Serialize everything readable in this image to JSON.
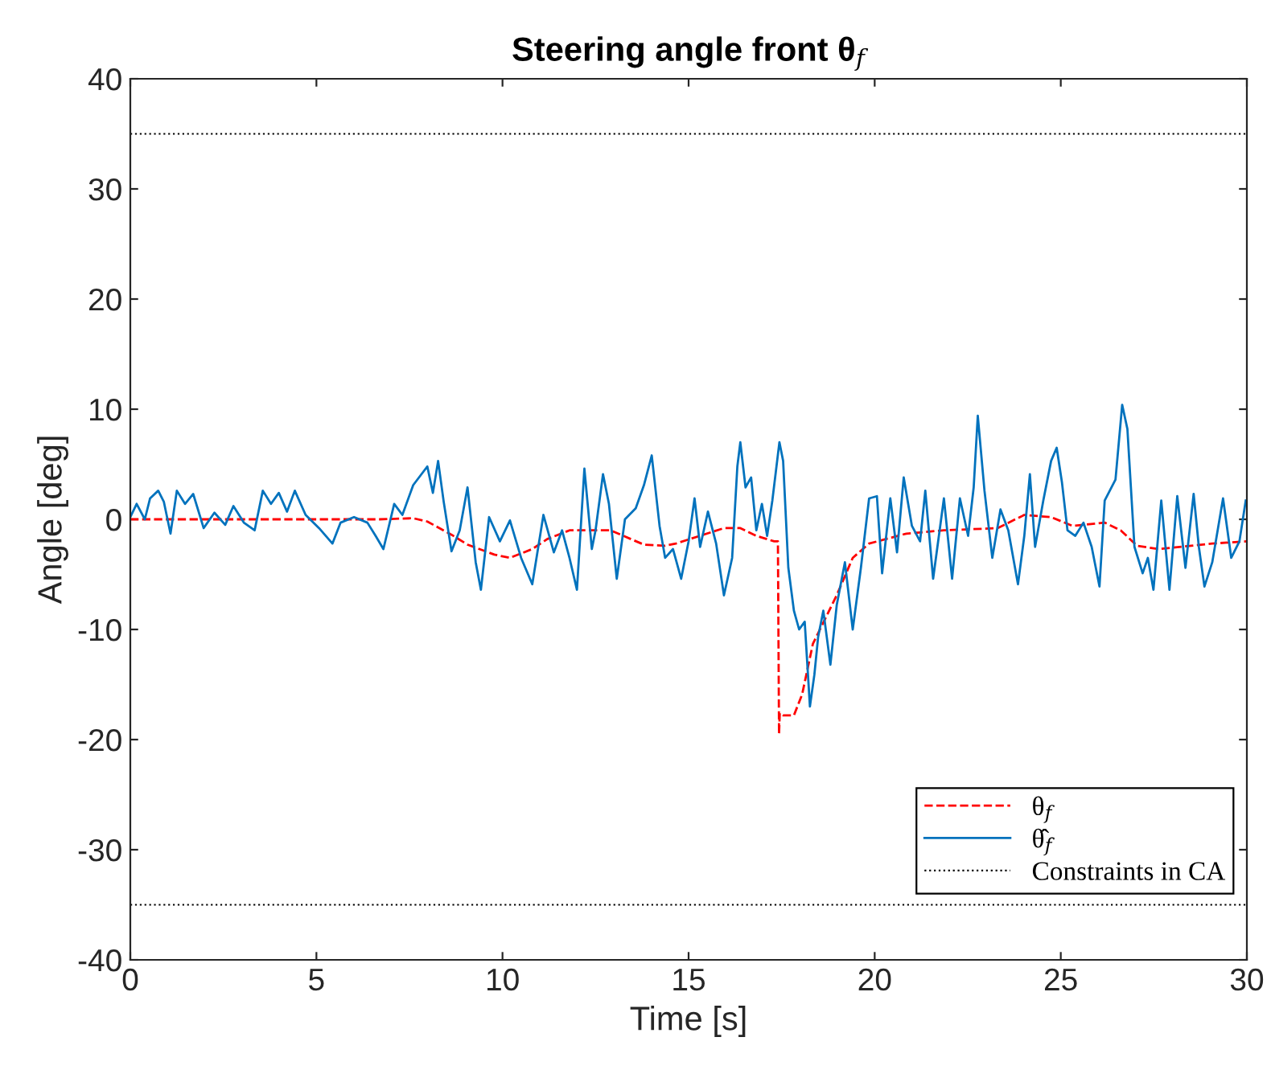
{
  "chart_data": {
    "type": "line",
    "title": "Steering angle front θ$_{f}$",
    "xlabel": "Time [s]",
    "ylabel": "Angle [deg]",
    "xlim": [
      0,
      30
    ],
    "ylim": [
      -40,
      40
    ],
    "xticks": [
      0,
      5,
      10,
      15,
      20,
      25,
      30
    ],
    "yticks": [
      -40,
      -30,
      -20,
      -10,
      0,
      10,
      20,
      30,
      40
    ],
    "grid": false,
    "legend": "bottom right",
    "series": [
      {
        "name": "θ$_{f}$",
        "color": "#ff0000",
        "line_style": "dashed",
        "x": [
          0,
          6.7,
          7.6,
          7.98,
          8.63,
          9.06,
          9.78,
          10.2,
          10.8,
          11.2,
          11.8,
          12.4,
          12.9,
          13.8,
          14.37,
          14.66,
          15.95,
          16.39,
          16.82,
          17.3,
          17.4,
          17.43,
          17.45,
          17.54,
          17.83,
          18.05,
          18.34,
          18.98,
          19.41,
          19.85,
          20.85,
          21.86,
          23.3,
          24.02,
          24.74,
          25.32,
          26.18,
          26.61,
          27.05,
          27.63,
          29.07,
          30
        ],
        "values": [
          0,
          0,
          0.1,
          -0.2,
          -1.4,
          -2.3,
          -3.2,
          -3.5,
          -2.7,
          -1.8,
          -1.0,
          -1.0,
          -1.0,
          -2.3,
          -2.4,
          -2.2,
          -0.8,
          -0.8,
          -1.5,
          -2.0,
          -2.0,
          -19.5,
          -17.6,
          -17.8,
          -17.8,
          -15.9,
          -11.3,
          -6.9,
          -3.5,
          -2.2,
          -1.3,
          -1.0,
          -0.8,
          0.4,
          0.2,
          -0.6,
          -0.3,
          -1.0,
          -2.4,
          -2.7,
          -2.2,
          -2.0
        ]
      },
      {
        "name": "θ̂$_{f}$",
        "color": "#0072bd",
        "line_style": "solid",
        "x": [
          0,
          0.17,
          0.39,
          0.53,
          0.75,
          0.9,
          1.08,
          1.25,
          1.47,
          1.69,
          1.97,
          2.26,
          2.55,
          2.77,
          3.05,
          3.34,
          3.56,
          3.78,
          3.99,
          4.21,
          4.42,
          4.71,
          5.07,
          5.43,
          5.65,
          6.01,
          6.37,
          6.59,
          6.8,
          7.09,
          7.31,
          7.6,
          7.98,
          8.13,
          8.27,
          8.42,
          8.63,
          8.85,
          9.06,
          9.28,
          9.42,
          9.64,
          9.93,
          10.2,
          10.5,
          10.8,
          11.1,
          11.38,
          11.6,
          11.8,
          12.0,
          12.2,
          12.4,
          12.5,
          12.7,
          12.86,
          13.07,
          13.29,
          13.58,
          13.8,
          14.01,
          14.22,
          14.37,
          14.58,
          14.8,
          15.0,
          15.16,
          15.31,
          15.52,
          15.74,
          15.95,
          16.17,
          16.31,
          16.39,
          16.53,
          16.68,
          16.82,
          16.97,
          17.11,
          17.25,
          17.44,
          17.54,
          17.68,
          17.83,
          17.97,
          18.12,
          18.26,
          18.38,
          18.48,
          18.62,
          18.81,
          18.98,
          19.2,
          19.41,
          19.63,
          19.85,
          20.06,
          20.2,
          20.42,
          20.6,
          20.78,
          21.0,
          21.22,
          21.36,
          21.57,
          21.86,
          22.08,
          22.29,
          22.51,
          22.66,
          22.77,
          22.95,
          23.16,
          23.38,
          23.59,
          23.85,
          24.02,
          24.17,
          24.31,
          24.53,
          24.74,
          24.89,
          25.03,
          25.18,
          25.39,
          25.61,
          25.83,
          26.04,
          26.18,
          26.47,
          26.65,
          26.79,
          26.98,
          27.2,
          27.34,
          27.49,
          27.7,
          27.92,
          28.13,
          28.35,
          28.57,
          28.71,
          28.86,
          29.07,
          29.36,
          29.58,
          29.8,
          29.97
        ],
        "values": [
          0.2,
          1.4,
          0,
          1.9,
          2.6,
          1.6,
          -1.3,
          2.6,
          1.4,
          2.3,
          -0.8,
          0.6,
          -0.5,
          1.2,
          -0.3,
          -1.0,
          2.6,
          1.4,
          2.4,
          0.7,
          2.6,
          0.4,
          -0.8,
          -2.2,
          -0.3,
          0.2,
          -0.3,
          -1.5,
          -2.7,
          1.4,
          0.4,
          3.1,
          4.8,
          2.4,
          5.3,
          1.6,
          -2.9,
          -1.0,
          2.9,
          -3.9,
          -6.4,
          0.2,
          -2.0,
          -0.1,
          -3.5,
          -5.9,
          0.4,
          -3.0,
          -1.0,
          -3.5,
          -6.4,
          4.6,
          -2.7,
          -1.0,
          4.1,
          1.4,
          -5.4,
          0.0,
          1.0,
          3.1,
          5.8,
          -0.6,
          -3.5,
          -2.7,
          -5.4,
          -2.0,
          1.9,
          -2.5,
          0.7,
          -2.2,
          -6.9,
          -3.5,
          4.8,
          7.0,
          2.9,
          3.8,
          -1.0,
          1.4,
          -1.5,
          1.7,
          7.0,
          5.3,
          -4.4,
          -8.3,
          -10.0,
          -9.3,
          -17.0,
          -14.1,
          -10.7,
          -8.3,
          -13.2,
          -7.8,
          -3.9,
          -10.0,
          -4.4,
          1.9,
          2.1,
          -4.9,
          1.9,
          -3.0,
          3.8,
          -0.6,
          -2.0,
          2.6,
          -5.4,
          1.9,
          -5.4,
          1.9,
          -1.5,
          2.9,
          9.4,
          2.6,
          -3.5,
          0.9,
          -1.0,
          -5.9,
          -1.5,
          4.1,
          -2.5,
          1.7,
          5.3,
          6.5,
          3.4,
          -1.0,
          -1.5,
          -0.3,
          -2.5,
          -6.1,
          1.7,
          3.6,
          10.4,
          8.2,
          -2.5,
          -4.9,
          -3.5,
          -6.4,
          1.7,
          -6.4,
          2.1,
          -4.4,
          2.3,
          -2.5,
          -6.1,
          -3.9,
          1.9,
          -3.5,
          -2.0,
          1.7
        ]
      }
    ],
    "ref_lines": [
      {
        "axis": "y",
        "value": 35,
        "label": "Constraints in CA",
        "color": "#000000",
        "line_style": "dotted"
      },
      {
        "axis": "y",
        "value": -35,
        "color": "#000000",
        "line_style": "dotted"
      }
    ]
  }
}
